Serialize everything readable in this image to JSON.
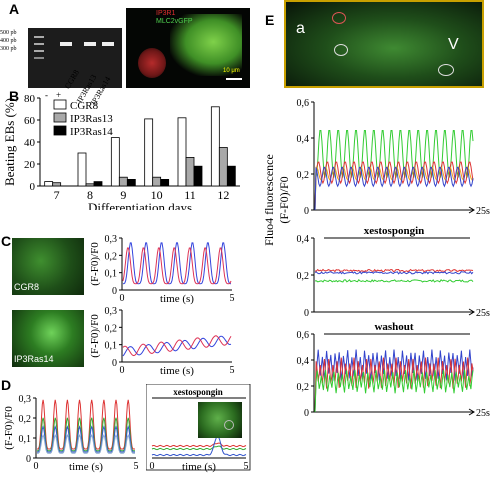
{
  "panels": {
    "A": {
      "label": "A",
      "gel": {
        "markers": [
          "500 pb",
          "400 pb",
          "300 pb"
        ],
        "lanes": [
          "-",
          "+",
          "CGR8",
          "IP3Ras13",
          "IP3Ras14"
        ]
      },
      "image": {
        "tag1": "IP3R1",
        "tag2": "MLC2vGFP",
        "scalebar": "10 μm"
      }
    },
    "B": {
      "label": "B",
      "chart_data": {
        "type": "bar",
        "ylabel": "Beating EBs (%)",
        "xlabel": "Differentiation days",
        "categories": [
          "7",
          "8",
          "9",
          "10",
          "11",
          "12"
        ],
        "ylim": [
          0,
          80
        ],
        "yticks": [
          0,
          20,
          40,
          60,
          80
        ],
        "legend_position": "top-left",
        "series": [
          {
            "name": "CGR8",
            "color": "#ffffff",
            "values": [
              4,
              30,
              44,
              61,
              62,
              72
            ]
          },
          {
            "name": "IP3Ras13",
            "color": "#a9a9a9",
            "values": [
              3,
              2,
              8,
              8,
              26,
              35
            ]
          },
          {
            "name": "IP3Ras14",
            "color": "#000000",
            "values": [
              0,
              4,
              6,
              6,
              18,
              18
            ]
          }
        ]
      }
    },
    "C": {
      "label": "C",
      "image1_label": "CGR8",
      "image2_label": "IP3Ras14",
      "ylabel": "(F-F0)/F0",
      "xlabel": "time (s)",
      "plot1": {
        "yticks": [
          "0,3",
          "0,2",
          "0,1",
          "0"
        ],
        "xticks": [
          "0",
          "5"
        ]
      },
      "plot2": {
        "yticks": [
          "0,3",
          "0,2",
          "0,1",
          "0"
        ],
        "xticks": [
          "0",
          "5"
        ]
      }
    },
    "D": {
      "label": "D",
      "ylabel": "(F-F0)/F0",
      "xlabel": "time (s)",
      "yticks": [
        "0,3",
        "0,2",
        "0,1",
        "0"
      ],
      "xticks_left": [
        "0",
        "5"
      ],
      "xticks_right": [
        "0",
        "5"
      ],
      "annotation": "xestospongin"
    },
    "E": {
      "label": "E",
      "image": {
        "label_a": "a",
        "label_v": "V"
      },
      "ylabel_line1": "Fluo4 fluorescence",
      "ylabel_line2": "(F-F0)/F0",
      "plot1": {
        "yticks": [
          "0,6",
          "0,4",
          "0,2",
          "0"
        ],
        "xend": "25s"
      },
      "plot2": {
        "title": "xestospongin",
        "yticks": [
          "0,4",
          "0,2",
          "0"
        ],
        "xend": "25s"
      },
      "plot3": {
        "title": "washout",
        "yticks": [
          "0,6",
          "0,4",
          "0,2",
          "0"
        ],
        "xend": "25s"
      }
    }
  }
}
